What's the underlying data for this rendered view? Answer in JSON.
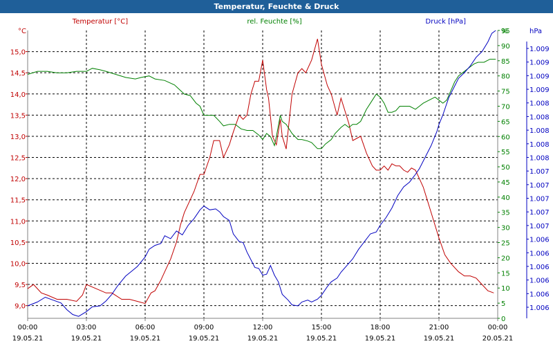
{
  "window": {
    "title": "Temperatur, Feuchte & Druck"
  },
  "colors": {
    "temperature": "#c00000",
    "humidity": "#008000",
    "pressure": "#0000c0",
    "grid": "#000000",
    "title_bg": "#1f5f99"
  },
  "chart_data": {
    "type": "line",
    "grid": true,
    "x_axis": {
      "labels": [
        {
          "time": "00:00",
          "date": "19.05.21"
        },
        {
          "time": "03:00",
          "date": "19.05.21"
        },
        {
          "time": "06:00",
          "date": "19.05.21"
        },
        {
          "time": "09:00",
          "date": "19.05.21"
        },
        {
          "time": "12:00",
          "date": "19.05.21"
        },
        {
          "time": "15:00",
          "date": "19.05.21"
        },
        {
          "time": "18:00",
          "date": "19.05.21"
        },
        {
          "time": "21:00",
          "date": "19.05.21"
        },
        {
          "time": "00:00",
          "date": "20.05.21"
        }
      ],
      "range_hours": [
        0,
        24
      ]
    },
    "axes": {
      "temperature": {
        "unit": "°C",
        "ylim": [
          8.7,
          15.5
        ],
        "ticks": [
          "9,0",
          "9,5",
          "10,0",
          "10,5",
          "11,0",
          "11,5",
          "12,0",
          "12,5",
          "13,0",
          "13,5",
          "14,0",
          "14,5",
          "15,0"
        ],
        "tick_values": [
          9.0,
          9.5,
          10.0,
          10.5,
          11.0,
          11.5,
          12.0,
          12.5,
          13.0,
          13.5,
          14.0,
          14.5,
          15.0
        ]
      },
      "humidity": {
        "unit": "%",
        "ylim": [
          0,
          95
        ],
        "ticks": [
          "0",
          "5",
          "10",
          "15",
          "20",
          "25",
          "30",
          "35",
          "40",
          "45",
          "50",
          "55",
          "60",
          "65",
          "70",
          "75",
          "80",
          "85",
          "90",
          "95"
        ],
        "tick_values": [
          0,
          5,
          10,
          15,
          20,
          25,
          30,
          35,
          40,
          45,
          50,
          55,
          60,
          65,
          70,
          75,
          80,
          85,
          90,
          95
        ]
      },
      "pressure": {
        "unit": "hPa",
        "ylim": [
          1006.0,
          1009.0
        ],
        "ticks": [
          "1.006",
          "1.006",
          "1.006",
          "1.006",
          "1.006",
          "1.006",
          "1.007",
          "1.007",
          "1.007",
          "1.007",
          "1.007",
          "1.008",
          "1.008",
          "1.008",
          "1.008",
          "1.008",
          "1.009",
          "1.009",
          "1.009",
          "1.009"
        ]
      }
    },
    "series": [
      {
        "name": "Temperatur [°C]",
        "axis": "temperature",
        "points": [
          [
            0,
            9.4
          ],
          [
            0.3,
            9.5
          ],
          [
            0.7,
            9.3
          ],
          [
            1,
            9.25
          ],
          [
            1.5,
            9.15
          ],
          [
            2,
            9.15
          ],
          [
            2.5,
            9.1
          ],
          [
            2.8,
            9.25
          ],
          [
            3,
            9.5
          ],
          [
            3.5,
            9.4
          ],
          [
            4,
            9.3
          ],
          [
            4.3,
            9.3
          ],
          [
            4.8,
            9.15
          ],
          [
            5.2,
            9.15
          ],
          [
            5.6,
            9.1
          ],
          [
            6,
            9.05
          ],
          [
            6.3,
            9.3
          ],
          [
            6.5,
            9.35
          ],
          [
            6.8,
            9.6
          ],
          [
            7,
            9.8
          ],
          [
            7.3,
            10.1
          ],
          [
            7.6,
            10.5
          ],
          [
            7.8,
            10.9
          ],
          [
            8,
            11.2
          ],
          [
            8.3,
            11.5
          ],
          [
            8.5,
            11.7
          ],
          [
            8.8,
            12.1
          ],
          [
            9,
            12.1
          ],
          [
            9.3,
            12.5
          ],
          [
            9.5,
            12.9
          ],
          [
            9.8,
            12.9
          ],
          [
            10,
            12.5
          ],
          [
            10.3,
            12.8
          ],
          [
            10.5,
            13.1
          ],
          [
            10.8,
            13.5
          ],
          [
            11,
            13.4
          ],
          [
            11.2,
            13.5
          ],
          [
            11.4,
            14.0
          ],
          [
            11.6,
            14.3
          ],
          [
            11.8,
            14.3
          ],
          [
            12,
            14.8
          ],
          [
            12.2,
            14.1
          ],
          [
            12.3,
            13.9
          ],
          [
            12.5,
            13.0
          ],
          [
            12.7,
            12.8
          ],
          [
            12.9,
            13.4
          ],
          [
            13,
            13.0
          ],
          [
            13.2,
            12.7
          ],
          [
            13.5,
            14.0
          ],
          [
            13.8,
            14.5
          ],
          [
            14,
            14.6
          ],
          [
            14.2,
            14.5
          ],
          [
            14.5,
            14.8
          ],
          [
            14.8,
            15.3
          ],
          [
            15,
            14.7
          ],
          [
            15.3,
            14.2
          ],
          [
            15.5,
            14.0
          ],
          [
            15.8,
            13.5
          ],
          [
            16,
            13.9
          ],
          [
            16.2,
            13.6
          ],
          [
            16.4,
            13.3
          ],
          [
            16.6,
            12.9
          ],
          [
            16.8,
            12.95
          ],
          [
            17,
            13.0
          ],
          [
            17.3,
            12.6
          ],
          [
            17.6,
            12.3
          ],
          [
            17.8,
            12.2
          ],
          [
            18,
            12.2
          ],
          [
            18.2,
            12.3
          ],
          [
            18.4,
            12.2
          ],
          [
            18.6,
            12.35
          ],
          [
            18.8,
            12.3
          ],
          [
            19,
            12.3
          ],
          [
            19.2,
            12.2
          ],
          [
            19.4,
            12.15
          ],
          [
            19.6,
            12.25
          ],
          [
            19.8,
            12.2
          ],
          [
            20,
            12.0
          ],
          [
            20.2,
            11.8
          ],
          [
            20.4,
            11.5
          ],
          [
            20.6,
            11.2
          ],
          [
            20.8,
            10.9
          ],
          [
            21,
            10.6
          ],
          [
            21.3,
            10.2
          ],
          [
            21.6,
            10.0
          ],
          [
            22,
            9.8
          ],
          [
            22.3,
            9.7
          ],
          [
            22.6,
            9.7
          ],
          [
            22.9,
            9.65
          ],
          [
            23.2,
            9.5
          ],
          [
            23.5,
            9.35
          ],
          [
            23.8,
            9.3
          ]
        ]
      },
      {
        "name": "rel. Feuchte [%]",
        "axis": "humidity",
        "points": [
          [
            0,
            80.5
          ],
          [
            0.5,
            81.5
          ],
          [
            1,
            81.5
          ],
          [
            1.5,
            81
          ],
          [
            2,
            81
          ],
          [
            2.5,
            81.5
          ],
          [
            3,
            81.5
          ],
          [
            3.3,
            82.5
          ],
          [
            3.7,
            82
          ],
          [
            4,
            81.5
          ],
          [
            4.5,
            80.5
          ],
          [
            5,
            79.5
          ],
          [
            5.5,
            79
          ],
          [
            5.8,
            79.5
          ],
          [
            6.2,
            80
          ],
          [
            6.5,
            79
          ],
          [
            7,
            78.5
          ],
          [
            7.5,
            77
          ],
          [
            8,
            74
          ],
          [
            8.3,
            73.5
          ],
          [
            8.6,
            71
          ],
          [
            8.8,
            70
          ],
          [
            9,
            67
          ],
          [
            9.5,
            67
          ],
          [
            9.8,
            65
          ],
          [
            10,
            63.5
          ],
          [
            10.3,
            64
          ],
          [
            10.6,
            64
          ],
          [
            10.9,
            62.5
          ],
          [
            11.2,
            62
          ],
          [
            11.5,
            62
          ],
          [
            11.8,
            60.5
          ],
          [
            12,
            59
          ],
          [
            12.2,
            61
          ],
          [
            12.4,
            60
          ],
          [
            12.6,
            57
          ],
          [
            12.7,
            60
          ],
          [
            12.9,
            67
          ],
          [
            13,
            65
          ],
          [
            13.2,
            64
          ],
          [
            13.5,
            61
          ],
          [
            13.8,
            59
          ],
          [
            14,
            59
          ],
          [
            14.3,
            58.5
          ],
          [
            14.5,
            58
          ],
          [
            14.8,
            56
          ],
          [
            15,
            56
          ],
          [
            15.2,
            57.5
          ],
          [
            15.5,
            59
          ],
          [
            15.7,
            61
          ],
          [
            16,
            63
          ],
          [
            16.2,
            64
          ],
          [
            16.4,
            63
          ],
          [
            16.6,
            64
          ],
          [
            16.8,
            64
          ],
          [
            17,
            65
          ],
          [
            17.3,
            69
          ],
          [
            17.6,
            72
          ],
          [
            17.8,
            74
          ],
          [
            18,
            73
          ],
          [
            18.2,
            71
          ],
          [
            18.4,
            68
          ],
          [
            18.6,
            68
          ],
          [
            18.8,
            68.5
          ],
          [
            19,
            70
          ],
          [
            19.2,
            70
          ],
          [
            19.5,
            70
          ],
          [
            19.8,
            69
          ],
          [
            20,
            70
          ],
          [
            20.2,
            71
          ],
          [
            20.5,
            72
          ],
          [
            20.8,
            73
          ],
          [
            21,
            72
          ],
          [
            21.2,
            71
          ],
          [
            21.4,
            72
          ],
          [
            21.6,
            75
          ],
          [
            21.8,
            78
          ],
          [
            22,
            80
          ],
          [
            22.2,
            81
          ],
          [
            22.4,
            82
          ],
          [
            22.6,
            83
          ],
          [
            22.8,
            84
          ],
          [
            23,
            84.5
          ],
          [
            23.3,
            84.5
          ],
          [
            23.6,
            85.5
          ],
          [
            23.9,
            85.5
          ]
        ]
      },
      {
        "name": "Druck [hPa]",
        "axis": "pressure",
        "points": [
          [
            0,
            1006.13
          ],
          [
            0.5,
            1006.17
          ],
          [
            0.9,
            1006.22
          ],
          [
            1.3,
            1006.19
          ],
          [
            1.7,
            1006.16
          ],
          [
            2,
            1006.09
          ],
          [
            2.3,
            1006.04
          ],
          [
            2.6,
            1006.02
          ],
          [
            3,
            1006.07
          ],
          [
            3.3,
            1006.12
          ],
          [
            3.7,
            1006.13
          ],
          [
            4,
            1006.18
          ],
          [
            4.3,
            1006.25
          ],
          [
            4.6,
            1006.34
          ],
          [
            5,
            1006.44
          ],
          [
            5.3,
            1006.49
          ],
          [
            5.6,
            1006.54
          ],
          [
            6,
            1006.64
          ],
          [
            6.2,
            1006.72
          ],
          [
            6.5,
            1006.76
          ],
          [
            6.8,
            1006.78
          ],
          [
            7,
            1006.86
          ],
          [
            7.3,
            1006.83
          ],
          [
            7.6,
            1006.91
          ],
          [
            7.9,
            1006.87
          ],
          [
            8.2,
            1006.97
          ],
          [
            8.5,
            1007.04
          ],
          [
            8.8,
            1007.13
          ],
          [
            9,
            1007.17
          ],
          [
            9.3,
            1007.13
          ],
          [
            9.6,
            1007.14
          ],
          [
            9.8,
            1007.11
          ],
          [
            10,
            1007.06
          ],
          [
            10.3,
            1007.02
          ],
          [
            10.5,
            1006.88
          ],
          [
            10.8,
            1006.8
          ],
          [
            11,
            1006.79
          ],
          [
            11.2,
            1006.69
          ],
          [
            11.4,
            1006.61
          ],
          [
            11.6,
            1006.53
          ],
          [
            11.8,
            1006.52
          ],
          [
            12,
            1006.45
          ],
          [
            12.2,
            1006.46
          ],
          [
            12.4,
            1006.55
          ],
          [
            12.6,
            1006.45
          ],
          [
            12.8,
            1006.38
          ],
          [
            13,
            1006.25
          ],
          [
            13.3,
            1006.19
          ],
          [
            13.5,
            1006.14
          ],
          [
            13.8,
            1006.13
          ],
          [
            14,
            1006.17
          ],
          [
            14.3,
            1006.19
          ],
          [
            14.5,
            1006.17
          ],
          [
            14.8,
            1006.2
          ],
          [
            15,
            1006.24
          ],
          [
            15.3,
            1006.33
          ],
          [
            15.5,
            1006.38
          ],
          [
            15.8,
            1006.42
          ],
          [
            16,
            1006.48
          ],
          [
            16.3,
            1006.55
          ],
          [
            16.6,
            1006.62
          ],
          [
            16.9,
            1006.72
          ],
          [
            17.2,
            1006.8
          ],
          [
            17.5,
            1006.88
          ],
          [
            17.8,
            1006.9
          ],
          [
            18,
            1006.97
          ],
          [
            18.3,
            1007.05
          ],
          [
            18.6,
            1007.15
          ],
          [
            18.9,
            1007.28
          ],
          [
            19.2,
            1007.37
          ],
          [
            19.5,
            1007.42
          ],
          [
            19.8,
            1007.5
          ],
          [
            20,
            1007.56
          ],
          [
            20.3,
            1007.68
          ],
          [
            20.6,
            1007.8
          ],
          [
            20.9,
            1007.95
          ],
          [
            21,
            1008.02
          ],
          [
            21.2,
            1008.12
          ],
          [
            21.5,
            1008.3
          ],
          [
            21.8,
            1008.42
          ],
          [
            22,
            1008.5
          ],
          [
            22.3,
            1008.56
          ],
          [
            22.6,
            1008.63
          ],
          [
            22.9,
            1008.72
          ],
          [
            23.2,
            1008.78
          ],
          [
            23.5,
            1008.88
          ],
          [
            23.7,
            1008.97
          ],
          [
            23.9,
            1009.0
          ]
        ]
      }
    ]
  }
}
